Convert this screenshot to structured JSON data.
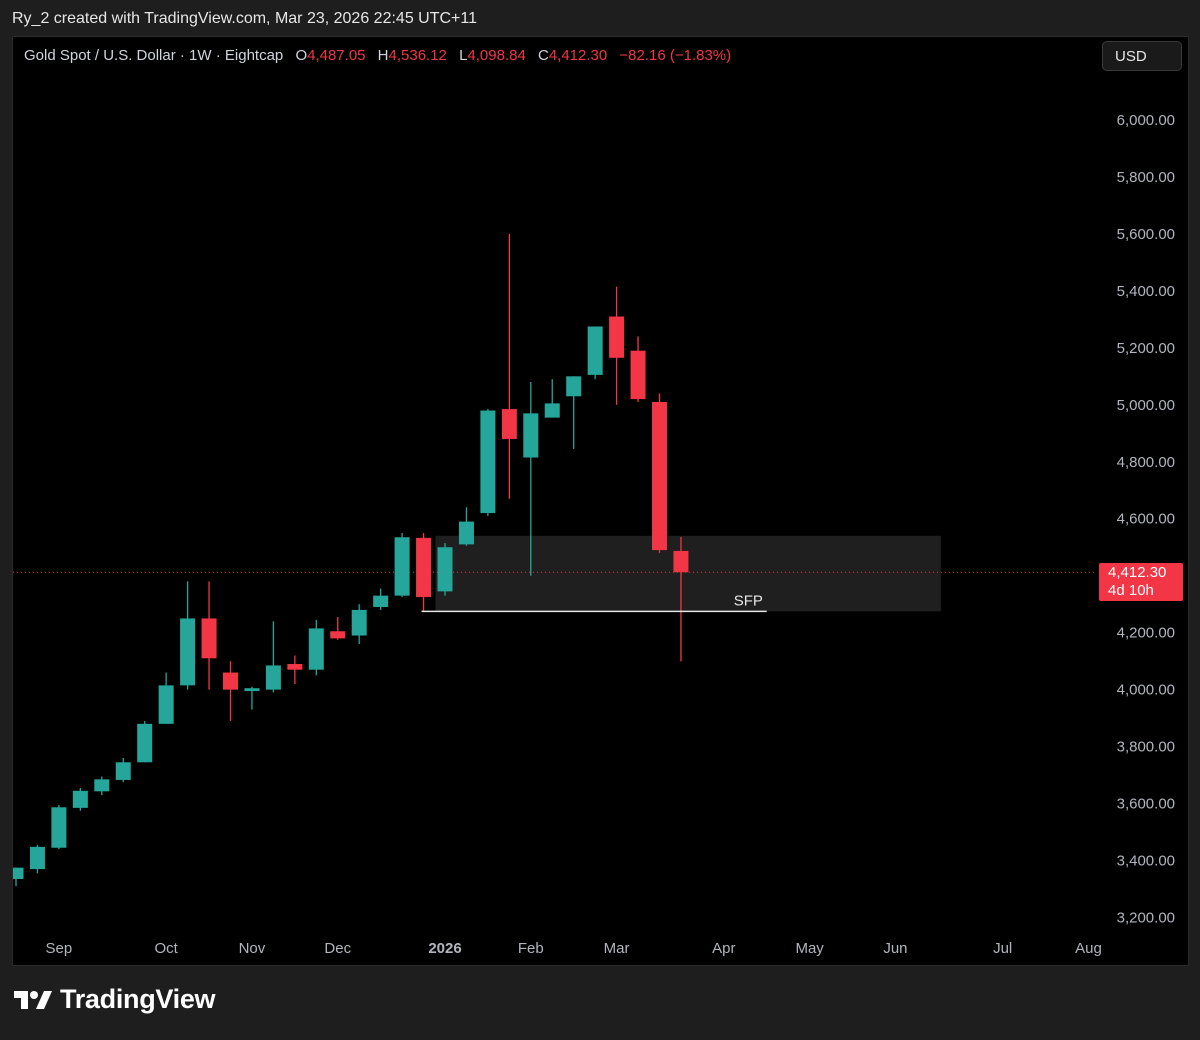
{
  "header": {
    "attribution": "Ry_2 created with TradingView.com, Mar 23, 2026 22:45 UTC+11"
  },
  "legend": {
    "symbol": "Gold Spot / U.S. Dollar · 1W · Eightcap",
    "open_label": "O",
    "open": "4,487.05",
    "high_label": "H",
    "high": "4,536.12",
    "low_label": "L",
    "low": "4,098.84",
    "close_label": "C",
    "close": "4,412.30",
    "change": "−82.16 (−1.83%)"
  },
  "currency_button": {
    "label": "USD"
  },
  "price_badge": {
    "price": "4,412.30",
    "countdown": "4d 10h"
  },
  "annotation": {
    "label": "SFP"
  },
  "footer": {
    "brand": "TradingView"
  },
  "colors": {
    "up": "#26a69a",
    "down": "#f23645",
    "background": "#000000",
    "axis_text": "#b2b5be",
    "zone": "#1f1f1f"
  },
  "chart_data": {
    "type": "candlestick",
    "ylim": [
      3100,
      6200
    ],
    "yticks": [
      3200,
      3400,
      3600,
      3800,
      4000,
      4200,
      4400,
      4600,
      4800,
      5000,
      5200,
      5400,
      5600,
      5800,
      6000
    ],
    "ytick_labels": [
      "3,200.00",
      "3,400.00",
      "3,600.00",
      "3,800.00",
      "4,000.00",
      "4,200.00",
      "4,400.00",
      "4,600.00",
      "4,800.00",
      "5,000.00",
      "5,200.00",
      "5,400.00",
      "5,600.00",
      "5,800.00",
      "6,000.00"
    ],
    "xaxis": {
      "labels": [
        "Sep",
        "Oct",
        "Nov",
        "Dec",
        "2026",
        "Feb",
        "Mar",
        "Apr",
        "May",
        "Jun",
        "Jul",
        "Aug"
      ],
      "label_candle_index": [
        2,
        7,
        11,
        15,
        20,
        24,
        28,
        33,
        37,
        41,
        46,
        50
      ],
      "bold": [
        "2026"
      ]
    },
    "candles": [
      {
        "o": 3335,
        "h": 3375,
        "l": 3310,
        "c": 3375
      },
      {
        "o": 3370,
        "h": 3455,
        "l": 3355,
        "c": 3448
      },
      {
        "o": 3445,
        "h": 3595,
        "l": 3440,
        "c": 3587
      },
      {
        "o": 3585,
        "h": 3655,
        "l": 3575,
        "c": 3645
      },
      {
        "o": 3643,
        "h": 3695,
        "l": 3630,
        "c": 3685
      },
      {
        "o": 3683,
        "h": 3760,
        "l": 3675,
        "c": 3745
      },
      {
        "o": 3745,
        "h": 3890,
        "l": 3745,
        "c": 3880
      },
      {
        "o": 3880,
        "h": 4060,
        "l": 3880,
        "c": 4015
      },
      {
        "o": 4015,
        "h": 4380,
        "l": 4000,
        "c": 4250
      },
      {
        "o": 4250,
        "h": 4380,
        "l": 4000,
        "c": 4110
      },
      {
        "o": 4060,
        "h": 4100,
        "l": 3890,
        "c": 4000
      },
      {
        "o": 3995,
        "h": 4010,
        "l": 3930,
        "c": 4005
      },
      {
        "o": 4000,
        "h": 4240,
        "l": 3990,
        "c": 4085
      },
      {
        "o": 4090,
        "h": 4120,
        "l": 4020,
        "c": 4070
      },
      {
        "o": 4070,
        "h": 4245,
        "l": 4050,
        "c": 4215
      },
      {
        "o": 4205,
        "h": 4255,
        "l": 4175,
        "c": 4180
      },
      {
        "o": 4190,
        "h": 4300,
        "l": 4160,
        "c": 4280
      },
      {
        "o": 4290,
        "h": 4355,
        "l": 4280,
        "c": 4330
      },
      {
        "o": 4330,
        "h": 4550,
        "l": 4325,
        "c": 4535
      },
      {
        "o": 4533,
        "h": 4550,
        "l": 4275,
        "c": 4325
      },
      {
        "o": 4345,
        "h": 4515,
        "l": 4330,
        "c": 4500
      },
      {
        "o": 4510,
        "h": 4640,
        "l": 4505,
        "c": 4590
      },
      {
        "o": 4620,
        "h": 4985,
        "l": 4610,
        "c": 4980
      },
      {
        "o": 4985,
        "h": 5600,
        "l": 4670,
        "c": 4880
      },
      {
        "o": 4815,
        "h": 5080,
        "l": 4400,
        "c": 4970
      },
      {
        "o": 4955,
        "h": 5090,
        "l": 4955,
        "c": 5005
      },
      {
        "o": 5030,
        "h": 5100,
        "l": 4845,
        "c": 5100
      },
      {
        "o": 5105,
        "h": 5275,
        "l": 5090,
        "c": 5275
      },
      {
        "o": 5310,
        "h": 5415,
        "l": 5000,
        "c": 5165
      },
      {
        "o": 5190,
        "h": 5240,
        "l": 5010,
        "c": 5020
      },
      {
        "o": 5010,
        "h": 5040,
        "l": 4480,
        "c": 4490
      },
      {
        "o": 4487.05,
        "h": 4536.12,
        "l": 4098.84,
        "c": 4412.3
      }
    ],
    "current_price": 4412.3,
    "zone": {
      "from_candle": 20,
      "to_candle": 43,
      "y_low": 4275,
      "y_high": 4540
    },
    "sfp_line": {
      "from_candle": 19,
      "to_candle": 35,
      "y": 4275
    }
  }
}
